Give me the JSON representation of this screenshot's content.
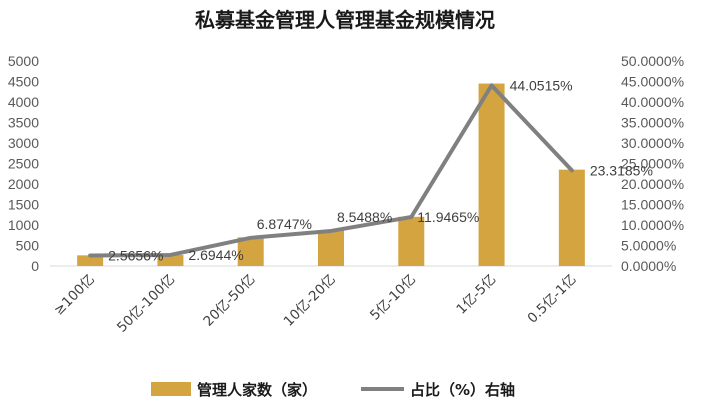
{
  "chart_data": {
    "type": "bar+line",
    "title": "私募基金管理人管理基金规模情况",
    "categories": [
      "≥100亿",
      "50亿-100亿",
      "20亿-50亿",
      "10亿-20亿",
      "5亿-10亿",
      "1亿-5亿",
      "0.5亿-1亿"
    ],
    "series": [
      {
        "name": "管理人家数（家）",
        "type": "bar",
        "axis": "left",
        "color": "#D4A441",
        "values": [
          260,
          270,
          700,
          870,
          1200,
          4450,
          2350
        ]
      },
      {
        "name": "占比（%）右轴",
        "type": "line",
        "axis": "right",
        "color": "#808080",
        "values": [
          2.5656,
          2.6944,
          6.8747,
          8.5488,
          11.9465,
          44.0515,
          23.3185
        ],
        "labels": [
          "2.5656%",
          "2.6944%",
          "6.8747%",
          "8.5488%",
          "11.9465%",
          "44.0515%",
          "23.3185%"
        ]
      }
    ],
    "left_axis": {
      "ylim": [
        0,
        5000
      ],
      "ticks": [
        "0",
        "500",
        "1000",
        "1500",
        "2000",
        "2500",
        "3000",
        "3500",
        "4000",
        "4500",
        "5000"
      ]
    },
    "right_axis": {
      "ylim": [
        0,
        50
      ],
      "ticks": [
        "0.0000%",
        "5.0000%",
        "10.0000%",
        "15.0000%",
        "20.0000%",
        "25.0000%",
        "30.0000%",
        "35.0000%",
        "40.0000%",
        "45.0000%",
        "50.0000%"
      ]
    },
    "grid": false,
    "legend_position": "bottom"
  }
}
